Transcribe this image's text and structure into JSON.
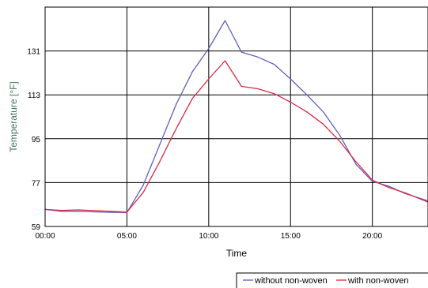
{
  "chart_data": {
    "type": "line",
    "xlabel": "Time",
    "ylabel": "Temperature [°F]",
    "x_unit": "hours",
    "xlim": [
      0,
      23.4
    ],
    "ylim": [
      59,
      149
    ],
    "x_ticks": [
      {
        "value": 0,
        "label": "00:00"
      },
      {
        "value": 5,
        "label": "05:00"
      },
      {
        "value": 10,
        "label": "10:00"
      },
      {
        "value": 15,
        "label": "15:00"
      },
      {
        "value": 20,
        "label": "20:00"
      }
    ],
    "y_ticks": [
      {
        "value": 59,
        "label": "59"
      },
      {
        "value": 77,
        "label": "77"
      },
      {
        "value": 95,
        "label": "95"
      },
      {
        "value": 113,
        "label": "113"
      },
      {
        "value": 131,
        "label": "131"
      }
    ],
    "grid": true,
    "legend_position": "bottom-right",
    "series": [
      {
        "name": "without non-woven",
        "color": "#6060c0",
        "points": [
          [
            0,
            66.0
          ],
          [
            1,
            65.2
          ],
          [
            2,
            65.2
          ],
          [
            3,
            65.0
          ],
          [
            4,
            64.8
          ],
          [
            5,
            64.7
          ],
          [
            6,
            76.0
          ],
          [
            7,
            92.5
          ],
          [
            8,
            109.0
          ],
          [
            9,
            122.5
          ],
          [
            10,
            132.0
          ],
          [
            11,
            143.5
          ],
          [
            12,
            130.5
          ],
          [
            13,
            128.5
          ],
          [
            14,
            125.5
          ],
          [
            15,
            119.5
          ],
          [
            16,
            113.0
          ],
          [
            17,
            106.0
          ],
          [
            18,
            96.5
          ],
          [
            19,
            84.5
          ],
          [
            20,
            77.5
          ],
          [
            21,
            75.5
          ],
          [
            22,
            72.5
          ],
          [
            23.4,
            69.5
          ]
        ]
      },
      {
        "name": "with non-woven",
        "color": "#dd2a48",
        "points": [
          [
            0,
            66.0
          ],
          [
            1,
            65.6
          ],
          [
            2,
            65.8
          ],
          [
            3,
            65.5
          ],
          [
            4,
            65.2
          ],
          [
            5,
            64.9
          ],
          [
            6,
            73.0
          ],
          [
            7,
            85.5
          ],
          [
            8,
            99.0
          ],
          [
            9,
            111.5
          ],
          [
            10,
            119.5
          ],
          [
            11,
            127.0
          ],
          [
            12,
            116.5
          ],
          [
            13,
            115.5
          ],
          [
            14,
            113.5
          ],
          [
            15,
            110.0
          ],
          [
            16,
            106.0
          ],
          [
            17,
            101.0
          ],
          [
            18,
            94.0
          ],
          [
            19,
            85.5
          ],
          [
            20,
            78.0
          ],
          [
            21,
            75.0
          ],
          [
            22,
            72.8
          ],
          [
            23.4,
            69.0
          ]
        ]
      }
    ]
  },
  "colors": {
    "ylabel": "#3f7a5f",
    "grid": "#000000"
  }
}
